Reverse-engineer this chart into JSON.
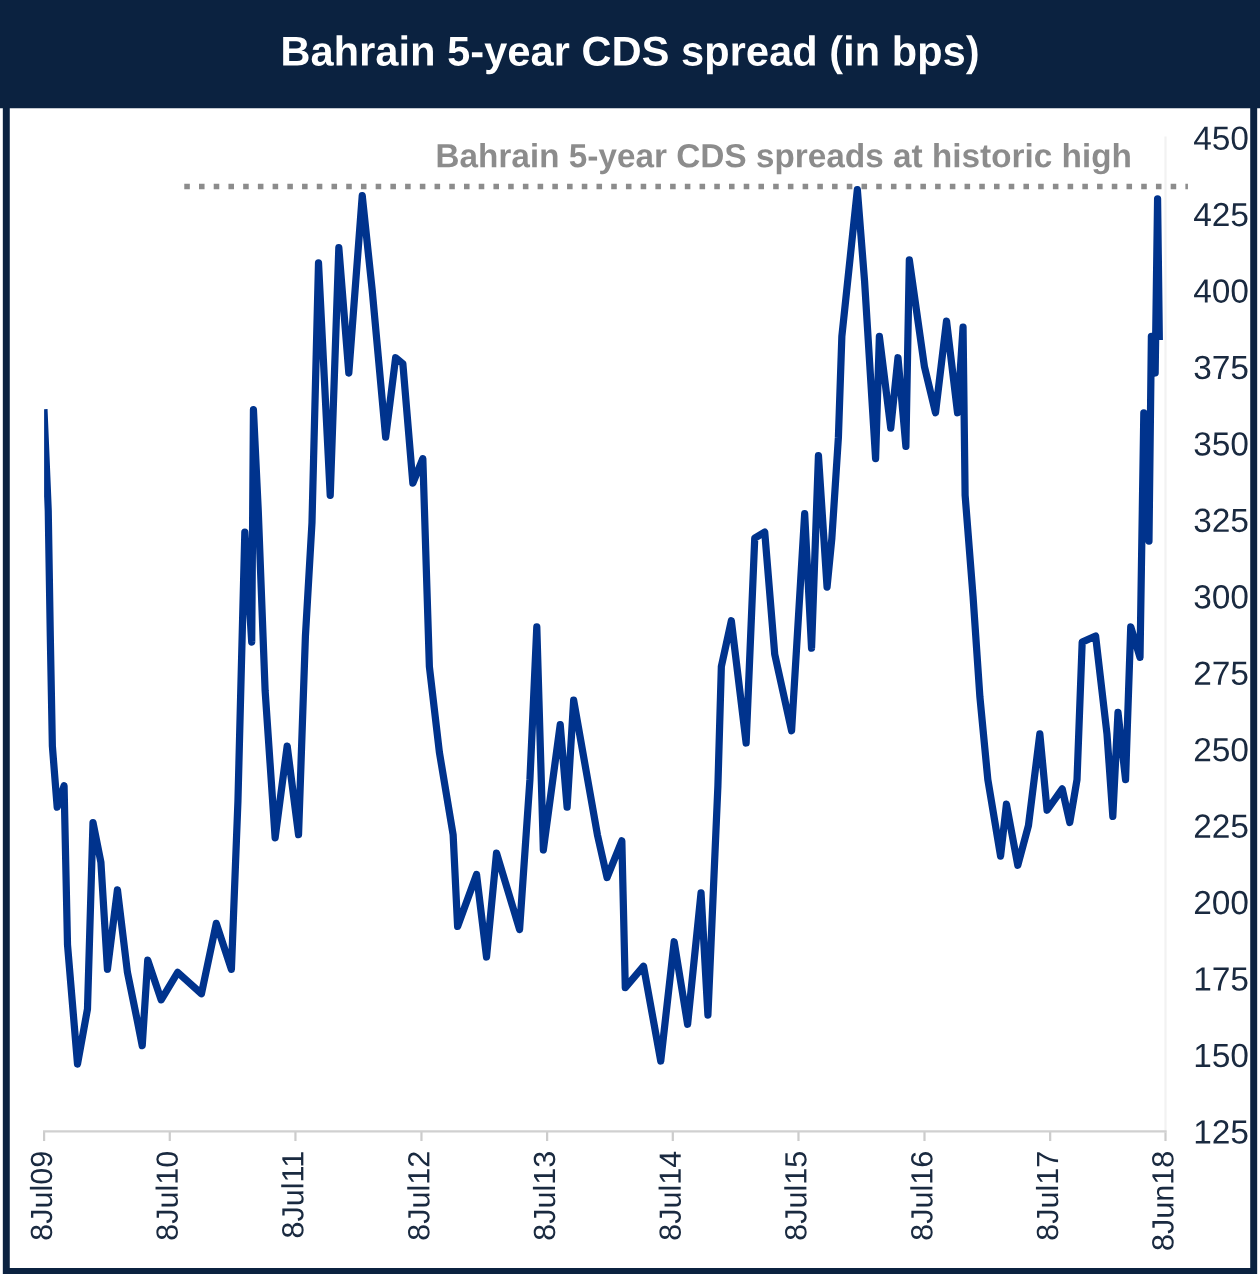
{
  "chart_data": {
    "type": "line",
    "title": "Bahrain 5-year CDS spread (in bps)",
    "x": [
      "2009-07-08",
      "2009-07-20",
      "2009-07-26",
      "2009-08-01",
      "2009-08-15",
      "2009-09-04",
      "2009-09-14",
      "2009-10-13",
      "2009-11-11",
      "2009-11-27",
      "2009-12-20",
      "2010-01-08",
      "2010-02-06",
      "2010-03-07",
      "2010-04-05",
      "2010-04-19",
      "2010-05-05",
      "2010-06-13",
      "2010-07-31",
      "2010-10-08",
      "2010-11-20",
      "2011-01-03",
      "2011-01-22",
      "2011-02-11",
      "2011-03-03",
      "2011-03-08",
      "2011-03-22",
      "2011-04-11",
      "2011-05-10",
      "2011-06-14",
      "2011-07-17",
      "2011-08-06",
      "2011-08-25",
      "2011-09-13",
      "2011-10-17",
      "2011-11-11",
      "2011-12-10",
      "2012-01-18",
      "2012-02-16",
      "2012-03-26",
      "2012-04-24",
      "2012-05-15",
      "2012-06-13",
      "2012-07-12",
      "2012-07-31",
      "2012-08-29",
      "2012-10-08",
      "2012-10-21",
      "2012-12-15",
      "2013-01-13",
      "2013-02-11",
      "2013-04-19",
      "2013-05-19",
      "2013-06-08",
      "2013-06-27",
      "2013-08-15",
      "2013-09-04",
      "2013-09-23",
      "2013-12-01",
      "2013-12-29",
      "2014-02-10",
      "2014-02-20",
      "2014-04-14",
      "2014-06-03",
      "2014-07-12",
      "2014-08-20",
      "2014-09-28",
      "2014-10-18",
      "2014-11-16",
      "2014-11-26",
      "2014-12-25",
      "2015-02-06",
      "2015-03-03",
      "2015-04-01",
      "2015-04-30",
      "2015-06-18",
      "2015-07-26",
      "2015-08-15",
      "2015-09-04",
      "2015-09-29",
      "2015-10-13",
      "2015-11-01",
      "2015-11-11",
      "2015-12-26",
      "2016-01-16",
      "2016-02-17",
      "2016-02-28",
      "2016-04-01",
      "2016-04-22",
      "2016-05-15",
      "2016-05-25",
      "2016-07-08",
      "2016-08-09",
      "2016-09-10",
      "2016-10-12",
      "2016-10-28",
      "2016-11-03",
      "2016-11-26",
      "2016-12-16",
      "2017-01-08",
      "2017-02-14",
      "2017-03-03",
      "2017-04-05",
      "2017-05-06",
      "2017-06-08",
      "2017-06-29",
      "2017-08-12",
      "2017-09-03",
      "2017-09-24",
      "2017-10-09",
      "2017-11-17",
      "2017-12-20",
      "2018-01-06",
      "2018-01-21",
      "2018-02-12",
      "2018-02-27",
      "2018-03-26",
      "2018-04-06",
      "2018-04-21",
      "2018-04-28",
      "2018-05-09",
      "2018-05-16",
      "2018-05-21"
    ],
    "series": [
      {
        "color": "#00338d",
        "values": [
          360,
          328,
          287,
          251,
          231,
          238,
          186,
          147,
          165,
          226,
          213,
          178,
          204,
          177,
          161,
          153,
          181,
          168,
          177,
          170,
          193,
          178,
          233,
          321,
          285,
          361,
          328,
          269,
          221,
          251,
          222,
          287,
          324,
          409,
          333,
          414,
          373,
          431,
          400,
          352,
          378,
          376,
          337,
          345,
          277,
          249,
          222,
          192,
          209,
          182,
          216,
          191,
          240,
          290,
          217,
          258,
          231,
          266,
          222,
          208,
          220,
          172,
          179,
          148,
          187,
          160,
          203,
          163,
          238,
          277,
          292,
          252,
          319,
          321,
          281,
          256,
          327,
          283,
          346,
          303,
          319,
          352,
          385,
          433,
          403,
          345,
          385,
          355,
          378,
          349,
          410,
          375,
          360,
          390,
          360,
          388,
          333,
          300,
          267,
          240,
          215,
          232,
          212,
          225,
          255,
          230,
          237,
          226,
          240,
          285,
          287,
          255,
          228,
          262,
          240,
          290,
          280,
          360,
          318,
          385,
          373,
          430,
          385
        ]
      }
    ],
    "xlim": [
      "2009-07-08",
      "2018-06-08"
    ],
    "xticks": [
      {
        "value": "2009-07-08",
        "label": "8Jul09"
      },
      {
        "value": "2010-07-08",
        "label": "8Jul10"
      },
      {
        "value": "2011-07-08",
        "label": "8Jul11"
      },
      {
        "value": "2012-07-08",
        "label": "8Jul12"
      },
      {
        "value": "2013-07-08",
        "label": "8Jul13"
      },
      {
        "value": "2014-07-08",
        "label": "8Jul14"
      },
      {
        "value": "2015-07-08",
        "label": "8Jul15"
      },
      {
        "value": "2016-07-08",
        "label": "8Jul16"
      },
      {
        "value": "2017-07-08",
        "label": "8Jul17"
      },
      {
        "value": "2018-06-08",
        "label": "8Jun18"
      }
    ],
    "ylim": [
      125,
      450
    ],
    "yticks": [
      125,
      150,
      175,
      200,
      225,
      250,
      275,
      300,
      325,
      350,
      375,
      400,
      425,
      450
    ],
    "ref_lines": [
      {
        "axis": "y",
        "value": 434,
        "label": "Bahrain 5-year CDS spreads at historic high",
        "color": "#8c8c8c",
        "line_style": "dotted"
      }
    ],
    "grid": false,
    "legend": false,
    "marker": "none",
    "line_style": "solid"
  }
}
